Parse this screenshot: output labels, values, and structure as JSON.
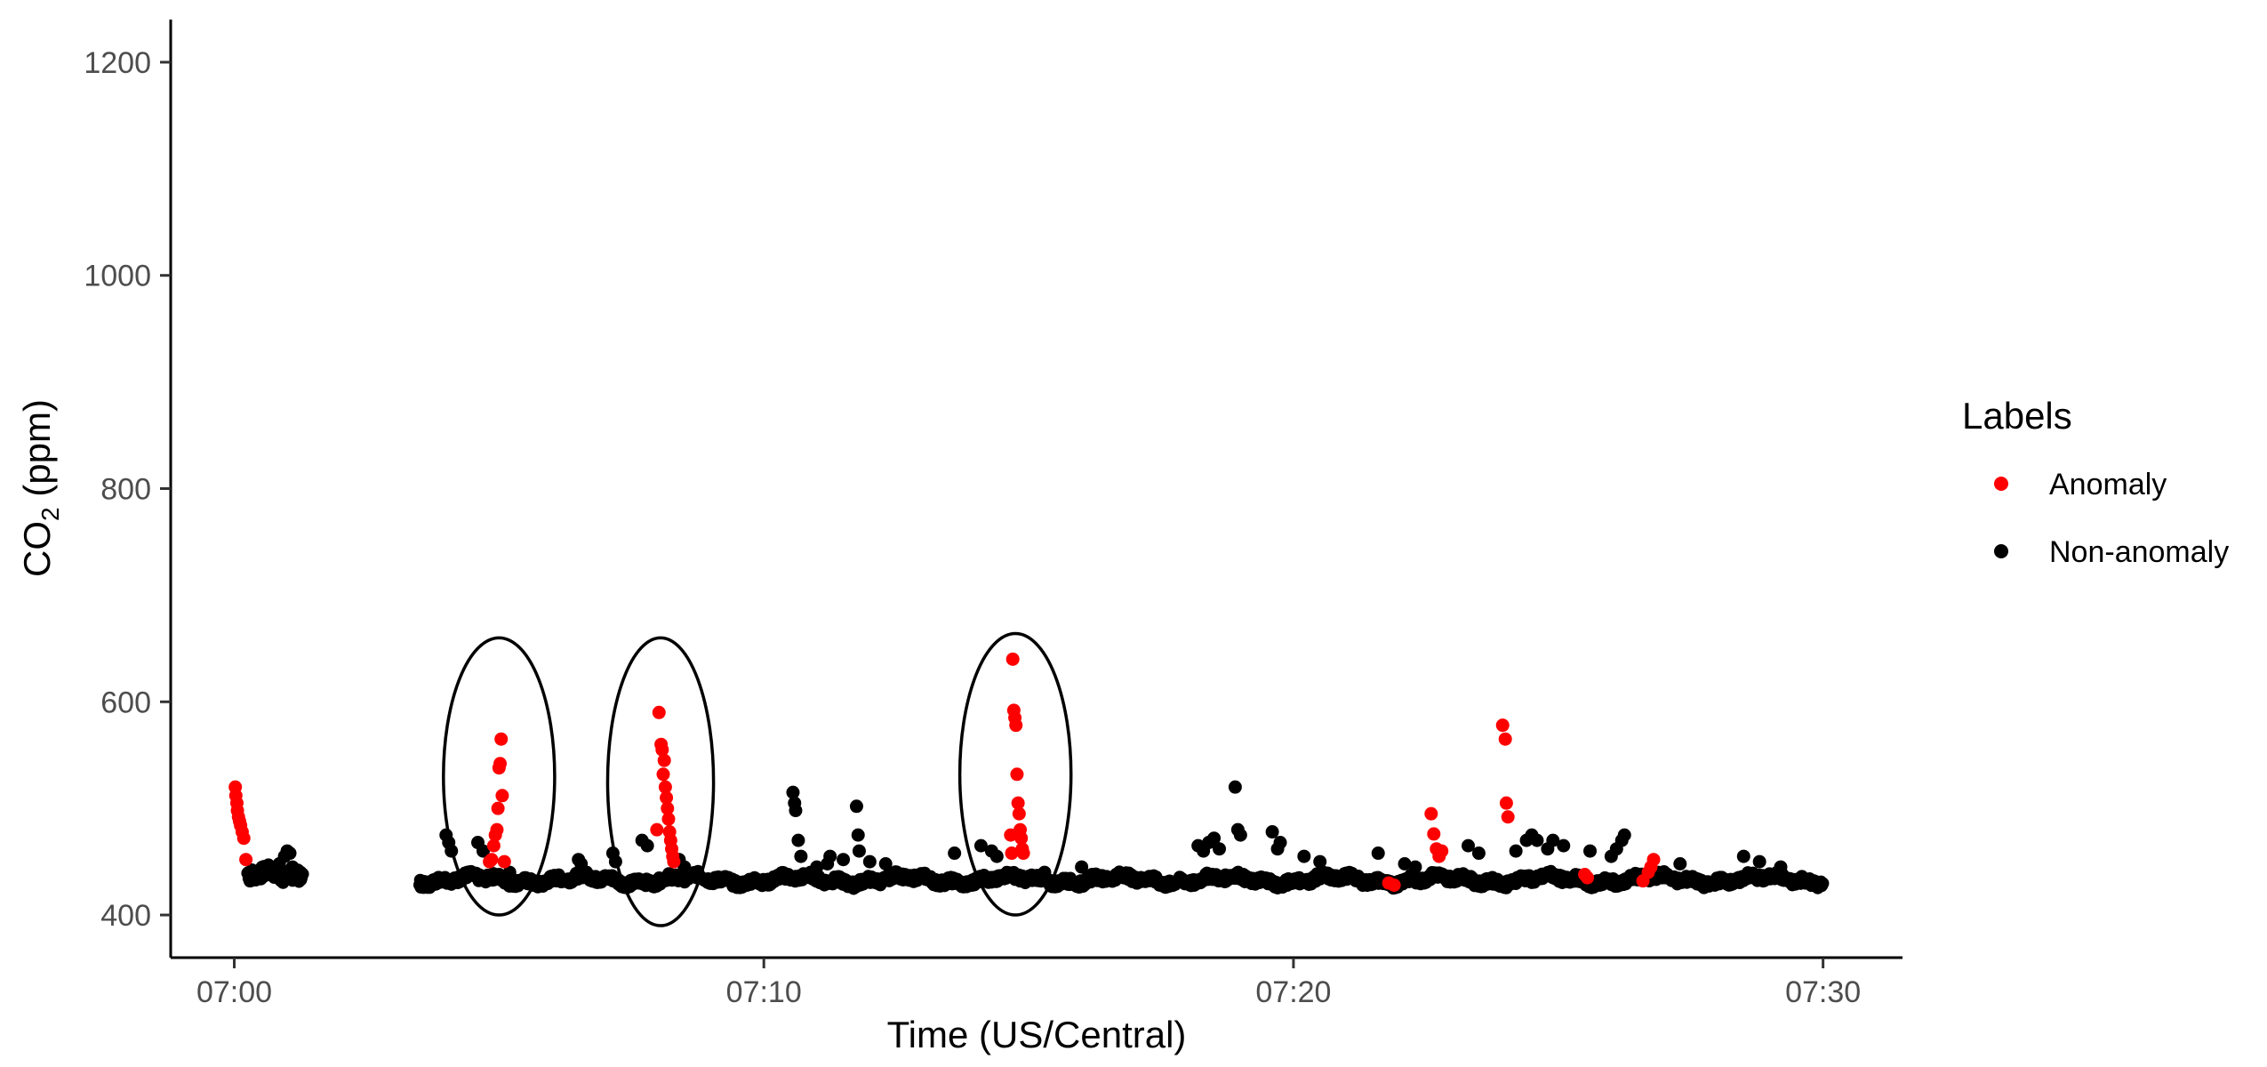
{
  "chart_data": {
    "type": "scatter",
    "title": "",
    "xlabel": "Time (US/Central)",
    "ylabel_main": "CO",
    "ylabel_sub": "2",
    "ylabel_unit": " (ppm)",
    "x_unit": "minutes after 07:00",
    "xlim": [
      -1.2,
      31.5
    ],
    "ylim": [
      360,
      1240
    ],
    "x_ticks": [
      {
        "value": 0,
        "label": "07:00"
      },
      {
        "value": 10,
        "label": "07:10"
      },
      {
        "value": 20,
        "label": "07:20"
      },
      {
        "value": 30,
        "label": "07:30"
      }
    ],
    "y_ticks": [
      {
        "value": 400,
        "label": "400"
      },
      {
        "value": 600,
        "label": "600"
      },
      {
        "value": 800,
        "label": "800"
      },
      {
        "value": 1000,
        "label": "1000"
      },
      {
        "value": 1200,
        "label": "1200"
      }
    ],
    "grid": false,
    "legend": {
      "title": "Labels",
      "position": "right",
      "entries": [
        {
          "label": "Anomaly",
          "color": "#ff0000"
        },
        {
          "label": "Non-anomaly",
          "color": "#000000"
        }
      ]
    },
    "series": [
      {
        "name": "Anomaly",
        "color": "#ff0000",
        "points": [
          [
            0.02,
            520
          ],
          [
            0.03,
            512
          ],
          [
            0.05,
            505
          ],
          [
            0.06,
            498
          ],
          [
            0.08,
            492
          ],
          [
            0.1,
            488
          ],
          [
            0.12,
            484
          ],
          [
            0.15,
            478
          ],
          [
            0.18,
            472
          ],
          [
            0.22,
            452
          ],
          [
            4.82,
            450
          ],
          [
            4.86,
            452
          ],
          [
            4.9,
            465
          ],
          [
            4.93,
            475
          ],
          [
            4.96,
            480
          ],
          [
            4.98,
            500
          ],
          [
            5.0,
            538
          ],
          [
            5.02,
            542
          ],
          [
            5.04,
            565
          ],
          [
            5.06,
            512
          ],
          [
            5.1,
            450
          ],
          [
            7.98,
            480
          ],
          [
            8.02,
            590
          ],
          [
            8.06,
            560
          ],
          [
            8.08,
            555
          ],
          [
            8.1,
            532
          ],
          [
            8.12,
            545
          ],
          [
            8.14,
            520
          ],
          [
            8.16,
            510
          ],
          [
            8.18,
            500
          ],
          [
            8.2,
            490
          ],
          [
            8.22,
            478
          ],
          [
            8.24,
            470
          ],
          [
            8.26,
            462
          ],
          [
            8.28,
            455
          ],
          [
            8.3,
            450
          ],
          [
            14.7,
            640
          ],
          [
            14.72,
            592
          ],
          [
            14.74,
            585
          ],
          [
            14.76,
            578
          ],
          [
            14.78,
            532
          ],
          [
            14.8,
            505
          ],
          [
            14.82,
            495
          ],
          [
            14.84,
            480
          ],
          [
            14.86,
            472
          ],
          [
            14.88,
            462
          ],
          [
            14.9,
            458
          ],
          [
            14.68,
            458
          ],
          [
            14.66,
            475
          ],
          [
            21.8,
            430
          ],
          [
            21.9,
            428
          ],
          [
            22.6,
            495
          ],
          [
            22.65,
            476
          ],
          [
            22.7,
            462
          ],
          [
            22.75,
            455
          ],
          [
            22.8,
            460
          ],
          [
            23.95,
            578
          ],
          [
            24.0,
            565
          ],
          [
            24.02,
            505
          ],
          [
            24.05,
            492
          ],
          [
            25.5,
            438
          ],
          [
            25.55,
            435
          ],
          [
            26.6,
            432
          ],
          [
            26.7,
            440
          ],
          [
            26.75,
            445
          ],
          [
            26.8,
            452
          ]
        ]
      },
      {
        "name": "Non-anomaly",
        "color": "#000000",
        "background_ranges": [
          {
            "from": 0.25,
            "to": 1.3,
            "base": 435,
            "amp": 12
          },
          {
            "from": 3.5,
            "to": 30.0,
            "base": 432,
            "amp": 7
          }
        ],
        "points": [
          [
            0.3,
            432
          ],
          [
            0.5,
            436
          ],
          [
            0.7,
            440
          ],
          [
            0.85,
            448
          ],
          [
            0.95,
            455
          ],
          [
            1.0,
            460
          ],
          [
            1.05,
            458
          ],
          [
            1.1,
            445
          ],
          [
            1.2,
            442
          ],
          [
            1.25,
            440
          ],
          [
            4.0,
            475
          ],
          [
            4.05,
            468
          ],
          [
            4.1,
            460
          ],
          [
            4.6,
            468
          ],
          [
            4.7,
            460
          ],
          [
            5.2,
            440
          ],
          [
            6.5,
            452
          ],
          [
            6.55,
            448
          ],
          [
            7.15,
            458
          ],
          [
            7.2,
            450
          ],
          [
            7.7,
            470
          ],
          [
            7.8,
            465
          ],
          [
            8.4,
            452
          ],
          [
            8.5,
            445
          ],
          [
            10.55,
            515
          ],
          [
            10.58,
            505
          ],
          [
            10.6,
            498
          ],
          [
            10.65,
            470
          ],
          [
            10.7,
            455
          ],
          [
            11.0,
            445
          ],
          [
            11.2,
            448
          ],
          [
            11.25,
            455
          ],
          [
            11.5,
            452
          ],
          [
            11.75,
            502
          ],
          [
            11.78,
            475
          ],
          [
            11.8,
            460
          ],
          [
            12.0,
            450
          ],
          [
            12.3,
            448
          ],
          [
            13.6,
            458
          ],
          [
            14.1,
            465
          ],
          [
            14.3,
            460
          ],
          [
            14.4,
            455
          ],
          [
            15.3,
            440
          ],
          [
            16.0,
            445
          ],
          [
            16.2,
            438
          ],
          [
            18.2,
            465
          ],
          [
            18.3,
            460
          ],
          [
            18.4,
            468
          ],
          [
            18.5,
            472
          ],
          [
            18.6,
            462
          ],
          [
            18.9,
            520
          ],
          [
            18.95,
            480
          ],
          [
            19.0,
            475
          ],
          [
            19.6,
            478
          ],
          [
            19.7,
            462
          ],
          [
            19.75,
            468
          ],
          [
            20.2,
            455
          ],
          [
            20.5,
            450
          ],
          [
            21.6,
            458
          ],
          [
            22.1,
            448
          ],
          [
            22.3,
            445
          ],
          [
            23.3,
            465
          ],
          [
            23.5,
            458
          ],
          [
            24.2,
            460
          ],
          [
            24.4,
            470
          ],
          [
            24.5,
            475
          ],
          [
            24.6,
            470
          ],
          [
            24.8,
            462
          ],
          [
            24.9,
            470
          ],
          [
            25.1,
            465
          ],
          [
            25.6,
            460
          ],
          [
            26.0,
            455
          ],
          [
            26.1,
            462
          ],
          [
            26.2,
            470
          ],
          [
            26.25,
            475
          ],
          [
            27.3,
            448
          ],
          [
            28.5,
            455
          ],
          [
            28.8,
            450
          ],
          [
            29.2,
            445
          ],
          [
            29.6,
            436
          ],
          [
            29.9,
            428
          ]
        ]
      }
    ],
    "annotations": [
      {
        "type": "ellipse",
        "cx": 5.0,
        "cy": 530,
        "rx": 1.05,
        "ry": 130
      },
      {
        "type": "ellipse",
        "cx": 8.05,
        "cy": 525,
        "rx": 1.0,
        "ry": 135
      },
      {
        "type": "ellipse",
        "cx": 14.75,
        "cy": 532,
        "rx": 1.05,
        "ry": 132
      }
    ]
  }
}
